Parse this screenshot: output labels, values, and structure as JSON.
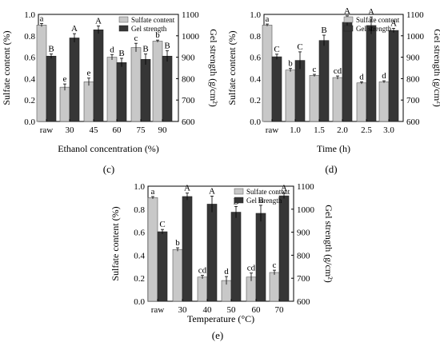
{
  "legend": {
    "s1": "Sulfate content",
    "s2": "Gel strength"
  },
  "colors": {
    "sulfate": "#c8c8c8",
    "gel": "#363636"
  },
  "panels": [
    {
      "label": "(c)",
      "xlabel": "Ethanol concentration (%)",
      "ylabel_left": "Sulfate content (%)",
      "ylabel_right": "Gel strength (g/cm²)",
      "ylim_left": [
        0,
        1.0
      ],
      "ylim_right": [
        600,
        1100
      ],
      "yticks_left": [
        "0.0",
        "0.2",
        "0.4",
        "0.6",
        "0.8",
        "1.0"
      ],
      "yticks_right": [
        "600",
        "700",
        "800",
        "900",
        "1000",
        "1100"
      ]
    },
    {
      "label": "(d)",
      "xlabel": "Time (h)",
      "ylabel_left": "Sulfate content (%)",
      "ylabel_right": "Gel strength (g/cm²)",
      "ylim_left": [
        0,
        1.0
      ],
      "ylim_right": [
        600,
        1100
      ],
      "yticks_left": [
        "0.0",
        "0.2",
        "0.4",
        "0.6",
        "0.8",
        "1.0"
      ],
      "yticks_right": [
        "600",
        "700",
        "800",
        "900",
        "1000",
        "1100"
      ]
    },
    {
      "label": "(e)",
      "xlabel": "Temperature (°C)",
      "ylabel_left": "Sulfate content (%)",
      "ylabel_right": "Gel strength (g/cm²)",
      "ylim_left": [
        0,
        1.0
      ],
      "ylim_right": [
        600,
        1100
      ],
      "yticks_left": [
        "0.0",
        "0.2",
        "0.4",
        "0.6",
        "0.8",
        "1.0"
      ],
      "yticks_right": [
        "600",
        "700",
        "800",
        "900",
        "1000",
        "1100"
      ]
    }
  ],
  "chart_data": [
    {
      "type": "bar",
      "categories": [
        "raw",
        "30",
        "45",
        "60",
        "75",
        "90"
      ],
      "series": [
        {
          "name": "Sulfate content",
          "axis": "left",
          "values": [
            0.9,
            0.32,
            0.37,
            0.6,
            0.69,
            0.75
          ],
          "errors": [
            0.015,
            0.03,
            0.035,
            0.025,
            0.04,
            0.01
          ],
          "letters": [
            "a",
            "e",
            "e",
            "d",
            "c",
            "b"
          ]
        },
        {
          "name": "Gel strength",
          "axis": "right",
          "values": [
            905,
            990,
            1028,
            875,
            890,
            905
          ],
          "errors": [
            10,
            20,
            18,
            20,
            25,
            25
          ],
          "letters": [
            "B",
            "A",
            "A",
            "B",
            "B",
            "B"
          ]
        }
      ]
    },
    {
      "type": "bar",
      "categories": [
        "raw",
        "1.0",
        "1.5",
        "2.0",
        "2.5",
        "3.0"
      ],
      "series": [
        {
          "name": "Sulfate content",
          "axis": "left",
          "values": [
            0.9,
            0.48,
            0.43,
            0.41,
            0.36,
            0.37
          ],
          "errors": [
            0.01,
            0.015,
            0.01,
            0.015,
            0.01,
            0.01
          ],
          "letters": [
            "a",
            "b",
            "c",
            "cd",
            "d",
            "d"
          ]
        },
        {
          "name": "Gel strength",
          "axis": "right",
          "values": [
            902,
            885,
            978,
            1063,
            1048,
            1025
          ],
          "errors": [
            12,
            40,
            25,
            30,
            40,
            10
          ],
          "letters": [
            "C",
            "C",
            "B",
            "A",
            "A",
            "A"
          ]
        }
      ]
    },
    {
      "type": "bar",
      "categories": [
        "raw",
        "30",
        "40",
        "50",
        "60",
        "70"
      ],
      "series": [
        {
          "name": "Sulfate content",
          "axis": "left",
          "values": [
            0.9,
            0.45,
            0.21,
            0.18,
            0.21,
            0.25
          ],
          "errors": [
            0.01,
            0.015,
            0.015,
            0.035,
            0.035,
            0.02
          ],
          "letters": [
            "a",
            "b",
            "cd",
            "d",
            "cd",
            "c"
          ]
        },
        {
          "name": "Gel strength",
          "axis": "right",
          "values": [
            902,
            1055,
            1022,
            987,
            982,
            1058
          ],
          "errors": [
            10,
            15,
            35,
            25,
            35,
            12
          ],
          "letters": [
            "C",
            "A",
            "A",
            "B",
            "B",
            "A"
          ]
        }
      ]
    }
  ]
}
